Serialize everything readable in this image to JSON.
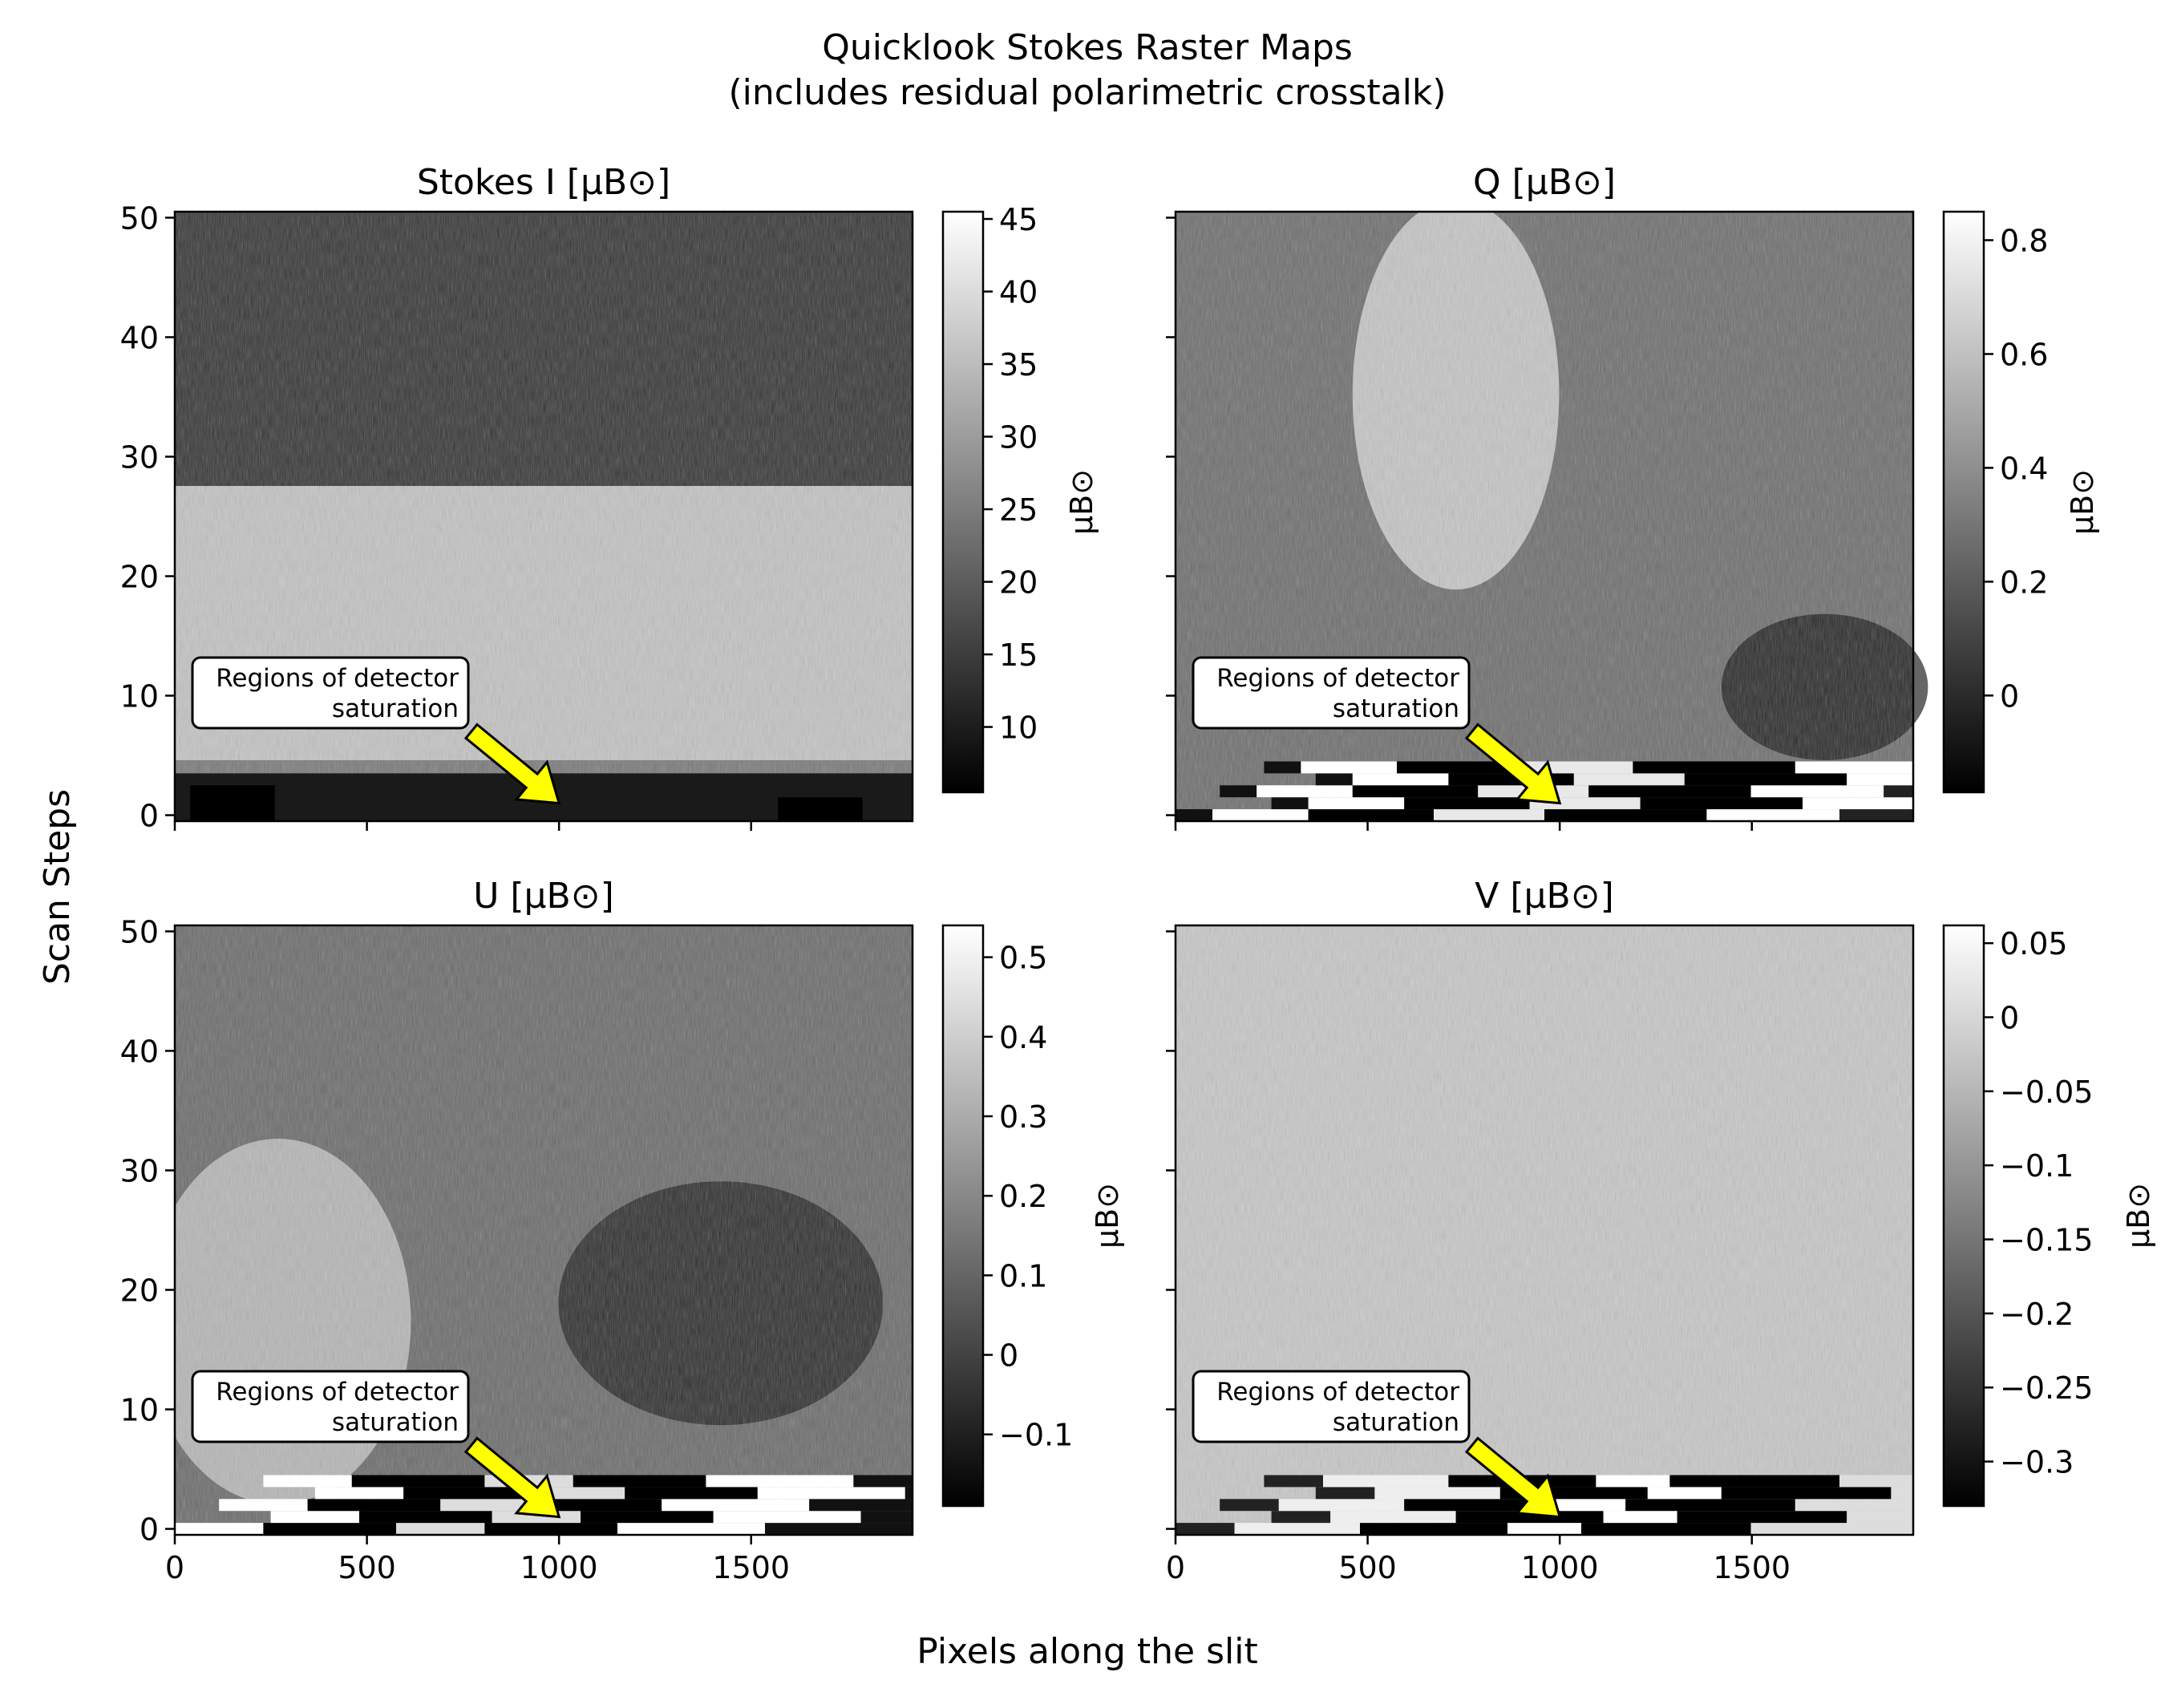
{
  "figure": {
    "title_line1": "Quicklook Stokes Raster Maps",
    "title_line2": "(includes residual polarimetric crosstalk)",
    "ylabel": "Scan Steps",
    "xlabel": "Pixels along the slit"
  },
  "chart_data": [
    {
      "type": "heatmap",
      "title": "Stokes I [μB⊙]",
      "xlabel": "Pixels along the slit",
      "ylabel": "Scan Steps",
      "xlim": [
        0,
        1920
      ],
      "ylim": [
        -0.5,
        50.5
      ],
      "xticks": [],
      "yticks": [
        0,
        10,
        20,
        30,
        40,
        50
      ],
      "colormap": "gray",
      "colorbar": {
        "label": "μB⊙",
        "range": [
          5.5,
          45.5
        ],
        "ticks": [
          10,
          15,
          20,
          25,
          30,
          35,
          40,
          45
        ]
      },
      "annotation": {
        "text_line1": "Regions of detector",
        "text_line2": "saturation",
        "arrow_to": [
          1000,
          1
        ]
      }
    },
    {
      "type": "heatmap",
      "title": "Q [μB⊙]",
      "xlabel": "Pixels along the slit",
      "ylabel": "Scan Steps",
      "xlim": [
        0,
        1920
      ],
      "ylim": [
        -0.5,
        50.5
      ],
      "xticks": [],
      "yticks": [],
      "colormap": "gray",
      "colorbar": {
        "label": "μB⊙",
        "range": [
          -0.17,
          0.85
        ],
        "ticks": [
          0.0,
          0.2,
          0.4,
          0.6,
          0.8
        ]
      },
      "annotation": {
        "text_line1": "Regions of detector",
        "text_line2": "saturation",
        "arrow_to": [
          1000,
          1
        ]
      }
    },
    {
      "type": "heatmap",
      "title": "U [μB⊙]",
      "xlabel": "Pixels along the slit",
      "ylabel": "Scan Steps",
      "xlim": [
        0,
        1920
      ],
      "ylim": [
        -0.5,
        50.5
      ],
      "xticks": [
        0,
        500,
        1000,
        1500
      ],
      "yticks": [
        0,
        10,
        20,
        30,
        40,
        50
      ],
      "colormap": "gray",
      "colorbar": {
        "label": "μB⊙",
        "range": [
          -0.19,
          0.54
        ],
        "ticks": [
          -0.1,
          0.0,
          0.1,
          0.2,
          0.3,
          0.4,
          0.5
        ]
      },
      "annotation": {
        "text_line1": "Regions of detector",
        "text_line2": "saturation",
        "arrow_to": [
          1000,
          1
        ]
      }
    },
    {
      "type": "heatmap",
      "title": "V [μB⊙]",
      "xlabel": "Pixels along the slit",
      "ylabel": "Scan Steps",
      "xlim": [
        0,
        1920
      ],
      "ylim": [
        -0.5,
        50.5
      ],
      "xticks": [
        0,
        500,
        1000,
        1500
      ],
      "yticks": [],
      "colormap": "gray",
      "colorbar": {
        "label": "μB⊙",
        "range": [
          -0.33,
          0.062
        ],
        "ticks": [
          -0.3,
          -0.25,
          -0.2,
          -0.15,
          -0.1,
          -0.05,
          0.0,
          0.05
        ]
      },
      "annotation": {
        "text_line1": "Regions of detector",
        "text_line2": "saturation",
        "arrow_to": [
          1000,
          1
        ]
      }
    }
  ]
}
